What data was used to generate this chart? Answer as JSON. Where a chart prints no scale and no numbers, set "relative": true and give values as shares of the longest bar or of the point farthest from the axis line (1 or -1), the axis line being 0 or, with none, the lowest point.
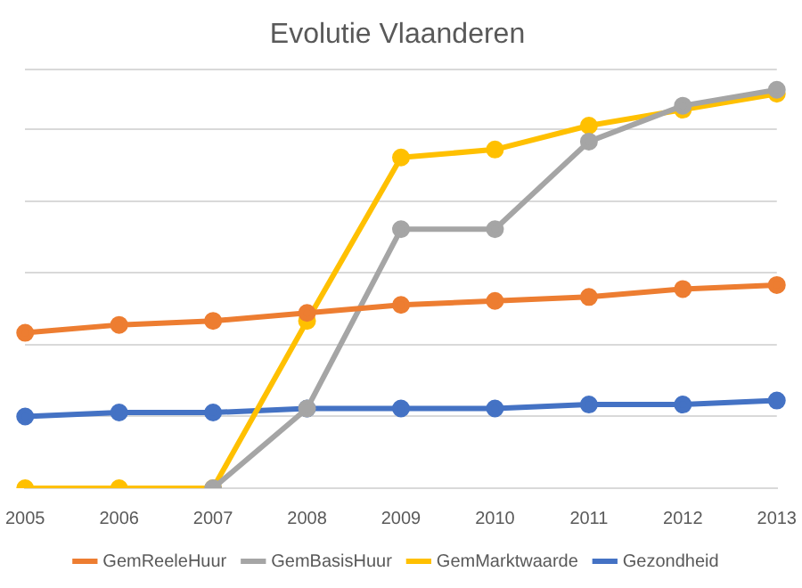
{
  "chart_data": {
    "type": "line",
    "title": "Evolutie Vlaanderen",
    "categories": [
      "2005",
      "2006",
      "2007",
      "2008",
      "2009",
      "2010",
      "2011",
      "2012",
      "2013"
    ],
    "relative": true,
    "grid": "y",
    "legend": "bottom",
    "marker": "circle",
    "line_style": "solid",
    "series": [
      {
        "name": "GemReeleHuur",
        "color": "#ed7d31",
        "values": [
          0.39,
          0.41,
          0.42,
          0.44,
          0.46,
          0.47,
          0.48,
          0.5,
          0.51
        ]
      },
      {
        "name": "GemBasisHuur",
        "color": "#a5a5a5",
        "values": [
          null,
          null,
          0,
          0.2,
          0.65,
          0.65,
          0.87,
          0.96,
          1
        ]
      },
      {
        "name": "GemMarktwaarde",
        "color": "#ffc000",
        "values": [
          0,
          0,
          0,
          0.42,
          0.83,
          0.85,
          0.91,
          0.95,
          0.99
        ]
      },
      {
        "name": "Gezondheid",
        "color": "#4472c4",
        "values": [
          0.18,
          0.19,
          0.19,
          0.2,
          0.2,
          0.2,
          0.21,
          0.21,
          0.22
        ]
      }
    ]
  }
}
